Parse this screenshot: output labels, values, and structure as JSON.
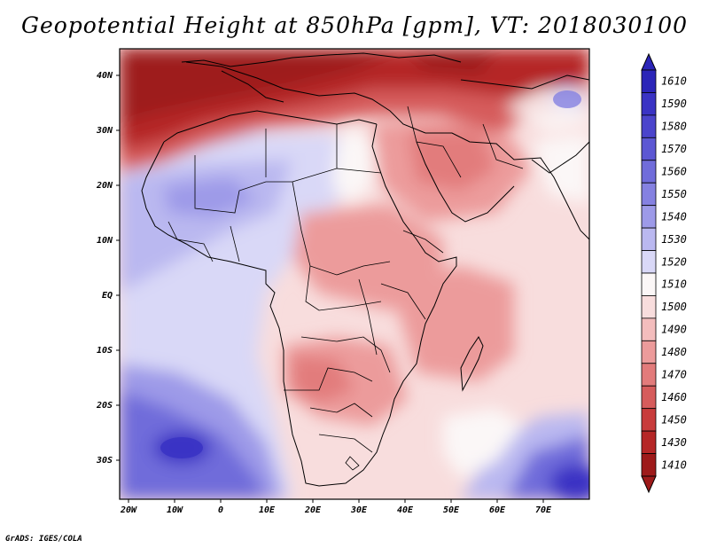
{
  "title": "Geopotential Height at 850hPa [gpm], VT: 2018030100",
  "credit": "GrADS: IGES/COLA",
  "map": {
    "variable": "Geopotential Height",
    "level": "850hPa",
    "units": "gpm",
    "valid_time": "2018030100",
    "lat_ticks": [
      "40N",
      "30N",
      "20N",
      "10N",
      "EQ",
      "10S",
      "20S",
      "30S"
    ],
    "lon_ticks": [
      "20W",
      "10W",
      "0",
      "10E",
      "20E",
      "30E",
      "40E",
      "50E",
      "60E",
      "70E"
    ]
  },
  "chart_data": {
    "type": "heatmap",
    "title": "Geopotential Height at 850hPa [gpm], VT: 2018030100",
    "xlim": [
      -22,
      80
    ],
    "ylim": [
      -37,
      45
    ],
    "colorbar": {
      "levels": [
        "1610",
        "1590",
        "1580",
        "1570",
        "1560",
        "1550",
        "1540",
        "1530",
        "1520",
        "1510",
        "1500",
        "1490",
        "1480",
        "1470",
        "1460",
        "1450",
        "1430",
        "1410"
      ],
      "colors": [
        "#2b25b8",
        "#3a33c4",
        "#4b44cc",
        "#5c57d3",
        "#706cda",
        "#8581e1",
        "#9d9ae8",
        "#bab8f0",
        "#d9d8f7",
        "#fbf7f7",
        "#f8dddd",
        "#f3bdbd",
        "#ec9b9b",
        "#e27b7b",
        "#d65c5c",
        "#c83c3c",
        "#b52727",
        "#9e1a1a"
      ]
    }
  }
}
